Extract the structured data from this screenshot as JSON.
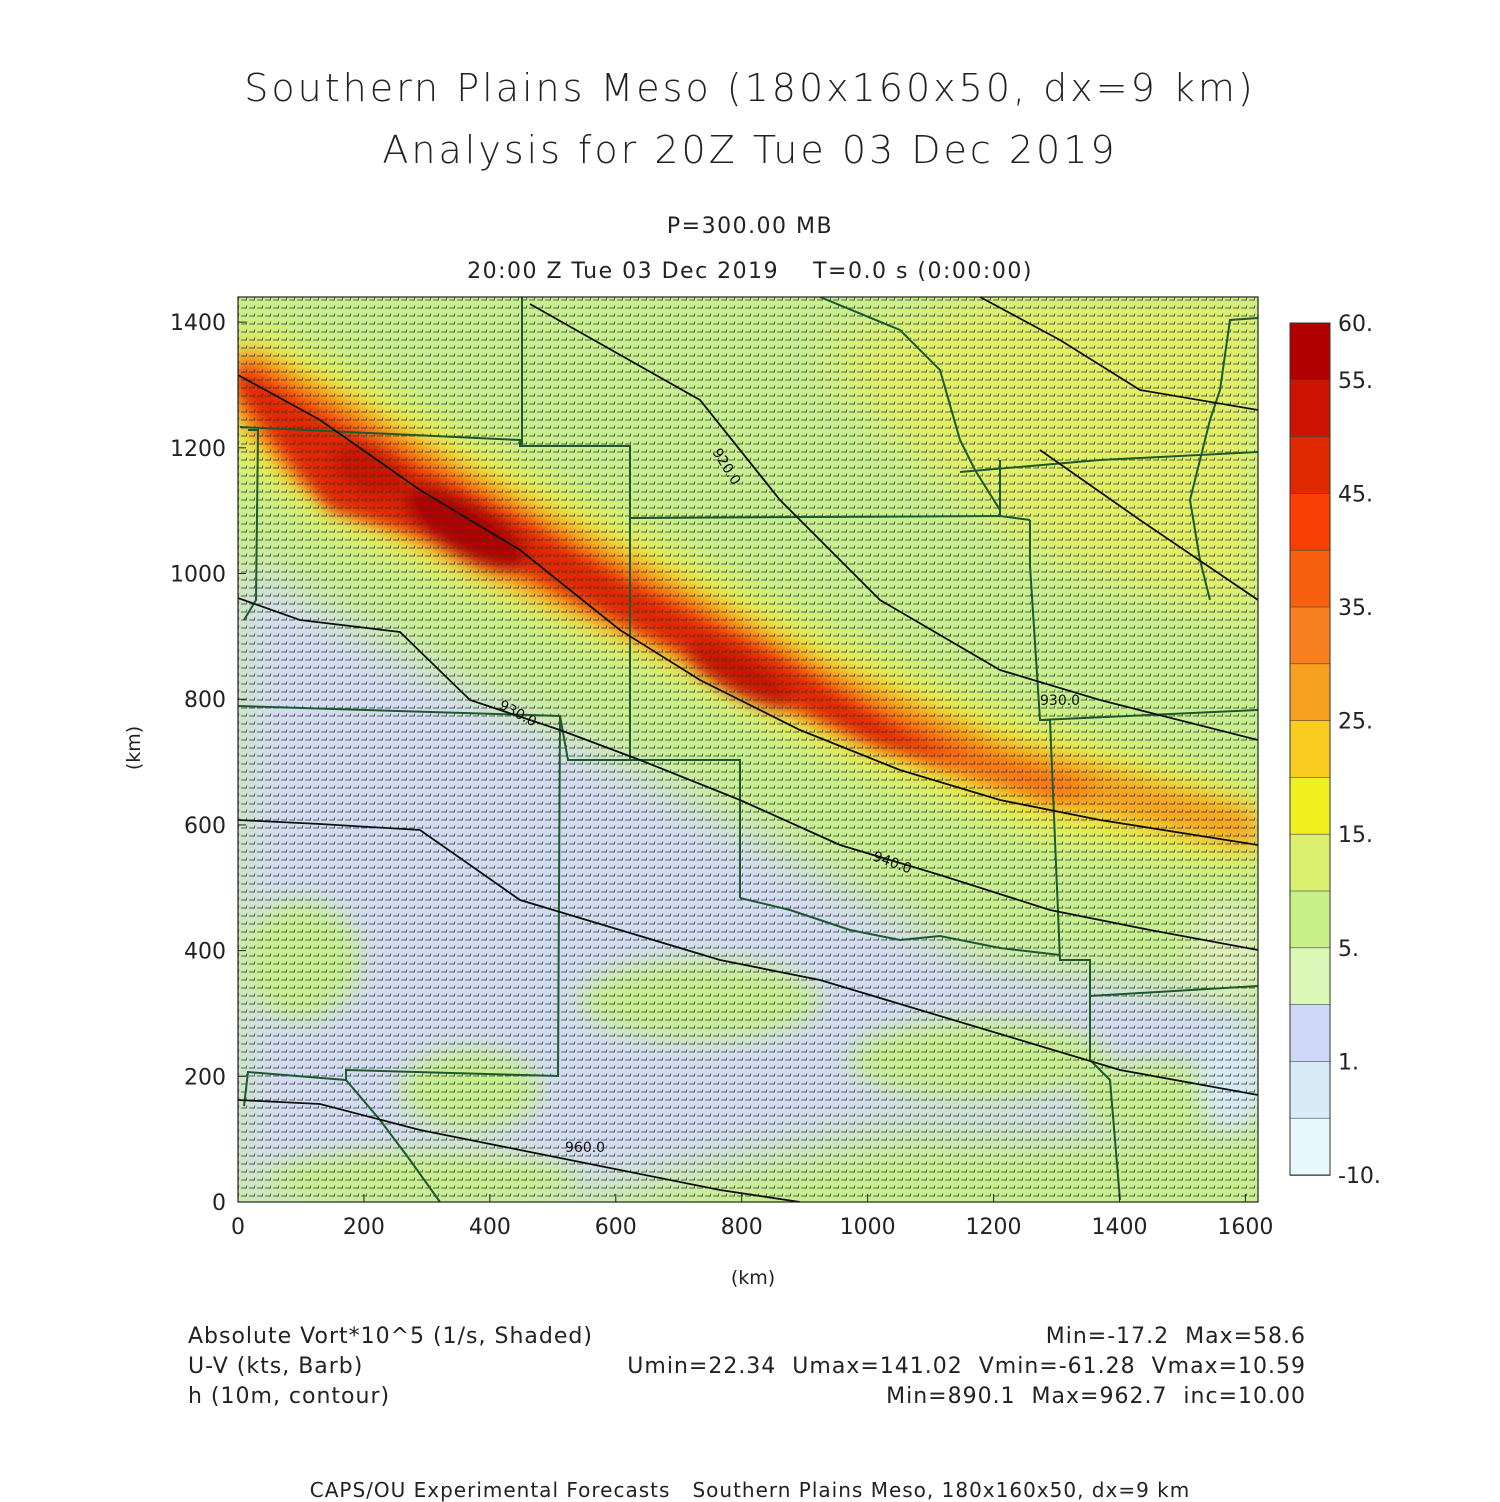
{
  "header": {
    "title_line1": "Southern Plains Meso (180x160x50, dx=9 km)",
    "title_line2": "Analysis for 20Z Tue 03 Dec 2019",
    "pressure": "P=300.00 MB",
    "time_line": "20:00 Z Tue 03 Dec 2019    T=0.0 s (0:00:00)"
  },
  "axes": {
    "x_ticks": [
      "0",
      "200",
      "400",
      "600",
      "800",
      "1000",
      "1200",
      "1400",
      "1600"
    ],
    "y_ticks": [
      "0",
      "200",
      "400",
      "600",
      "800",
      "1000",
      "1200",
      "1400"
    ],
    "x_label": "(km)",
    "y_label": "(km)",
    "x_range": [
      0,
      1620
    ],
    "y_range": [
      0,
      1440
    ]
  },
  "colorbar": {
    "labels": [
      "60.",
      "55.",
      "45.",
      "35.",
      "25.",
      "15.",
      "5.",
      "1.",
      "-10."
    ],
    "colors": [
      "#b00000",
      "#cc1400",
      "#e02800",
      "#f83e00",
      "#f86010",
      "#f88020",
      "#f8a020",
      "#f8cc20",
      "#f0f020",
      "#dcf070",
      "#c8f088",
      "#dcf8b8",
      "#d0d8f8",
      "#d8ecf8",
      "#e8f8fc"
    ]
  },
  "contours": {
    "labels": [
      "920.0",
      "930.0",
      "940.0",
      "960.0",
      "930.0"
    ]
  },
  "legend": {
    "field1": "Absolute Vort*10^5 (1/s, Shaded)",
    "field1_stats": "Min=-17.2  Max=58.6",
    "field2": "U-V (kts, Barb)",
    "field2_stats": "Umin=22.34  Umax=141.02  Vmin=-61.28  Vmax=10.59",
    "field3": "h (10m, contour)",
    "field3_stats": "Min=890.1  Max=962.7  inc=10.00"
  },
  "footer": "CAPS/OU Experimental Forecasts   Southern Plains Meso, 180x160x50, dx=9 km",
  "theme": {
    "field_base": "#c8f090",
    "low_vort": "#d4dcf8",
    "barb": "#333333",
    "state_lines": "#1e5a2e",
    "contour": "#111111"
  }
}
